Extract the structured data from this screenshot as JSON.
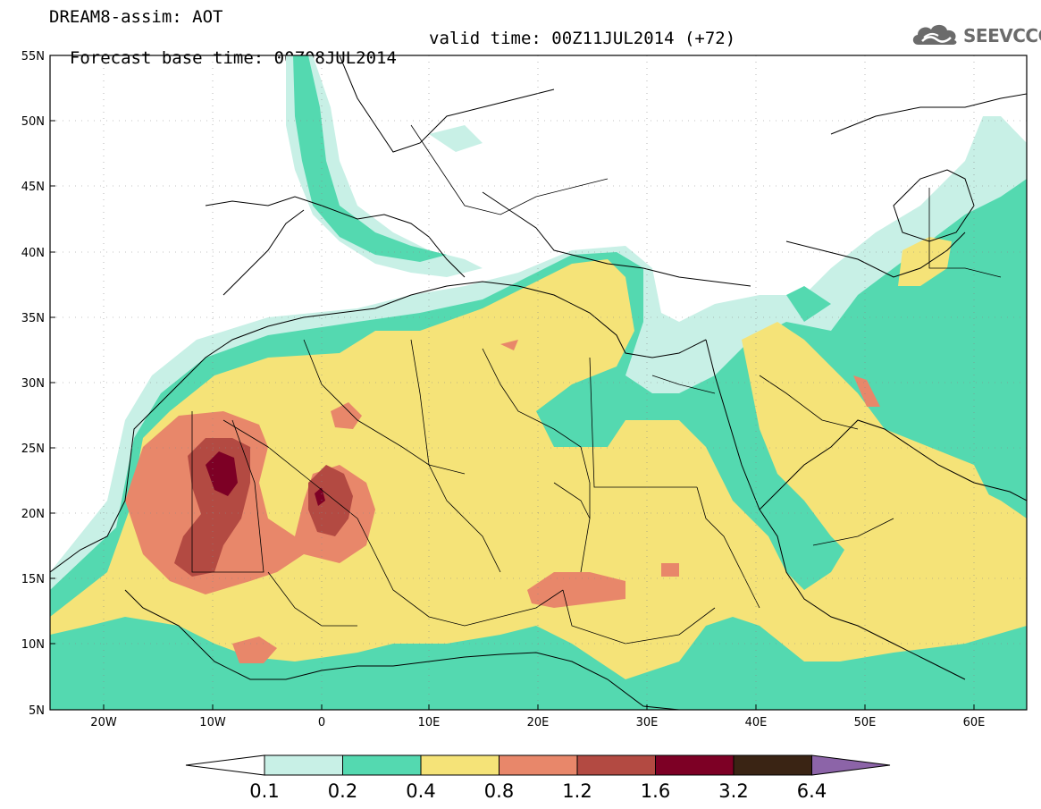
{
  "header": {
    "title": "DREAM8-assim: AOT",
    "base_time": "Forecast base time: 00Z08JUL2014",
    "valid_time": "valid time: 00Z11JUL2014 (+72)"
  },
  "logo": {
    "text": "SEEVCCC",
    "icon": "cloud-logo-icon"
  },
  "map": {
    "lat_labels": [
      "55N",
      "50N",
      "45N",
      "40N",
      "35N",
      "30N",
      "25N",
      "20N",
      "15N",
      "10N",
      "5N"
    ],
    "lon_labels": [
      "20W",
      "10W",
      "0",
      "10E",
      "20E",
      "30E",
      "40E",
      "50E",
      "60E"
    ]
  },
  "colorbar": {
    "levels": [
      "0.1",
      "0.2",
      "0.4",
      "0.8",
      "1.2",
      "1.6",
      "3.2",
      "6.4"
    ],
    "colors": [
      "#ffffff",
      "#c8f0e6",
      "#54d9b0",
      "#f5e378",
      "#e8876a",
      "#b34a42",
      "#7d0025",
      "#3a2414",
      "#8c64a8"
    ]
  },
  "colors": {
    "aot_01": "#c8f0e6",
    "aot_02": "#54d9b0",
    "aot_04": "#f5e378",
    "aot_08": "#e8876a",
    "aot_12": "#b34a42",
    "aot_16": "#7d0025"
  }
}
